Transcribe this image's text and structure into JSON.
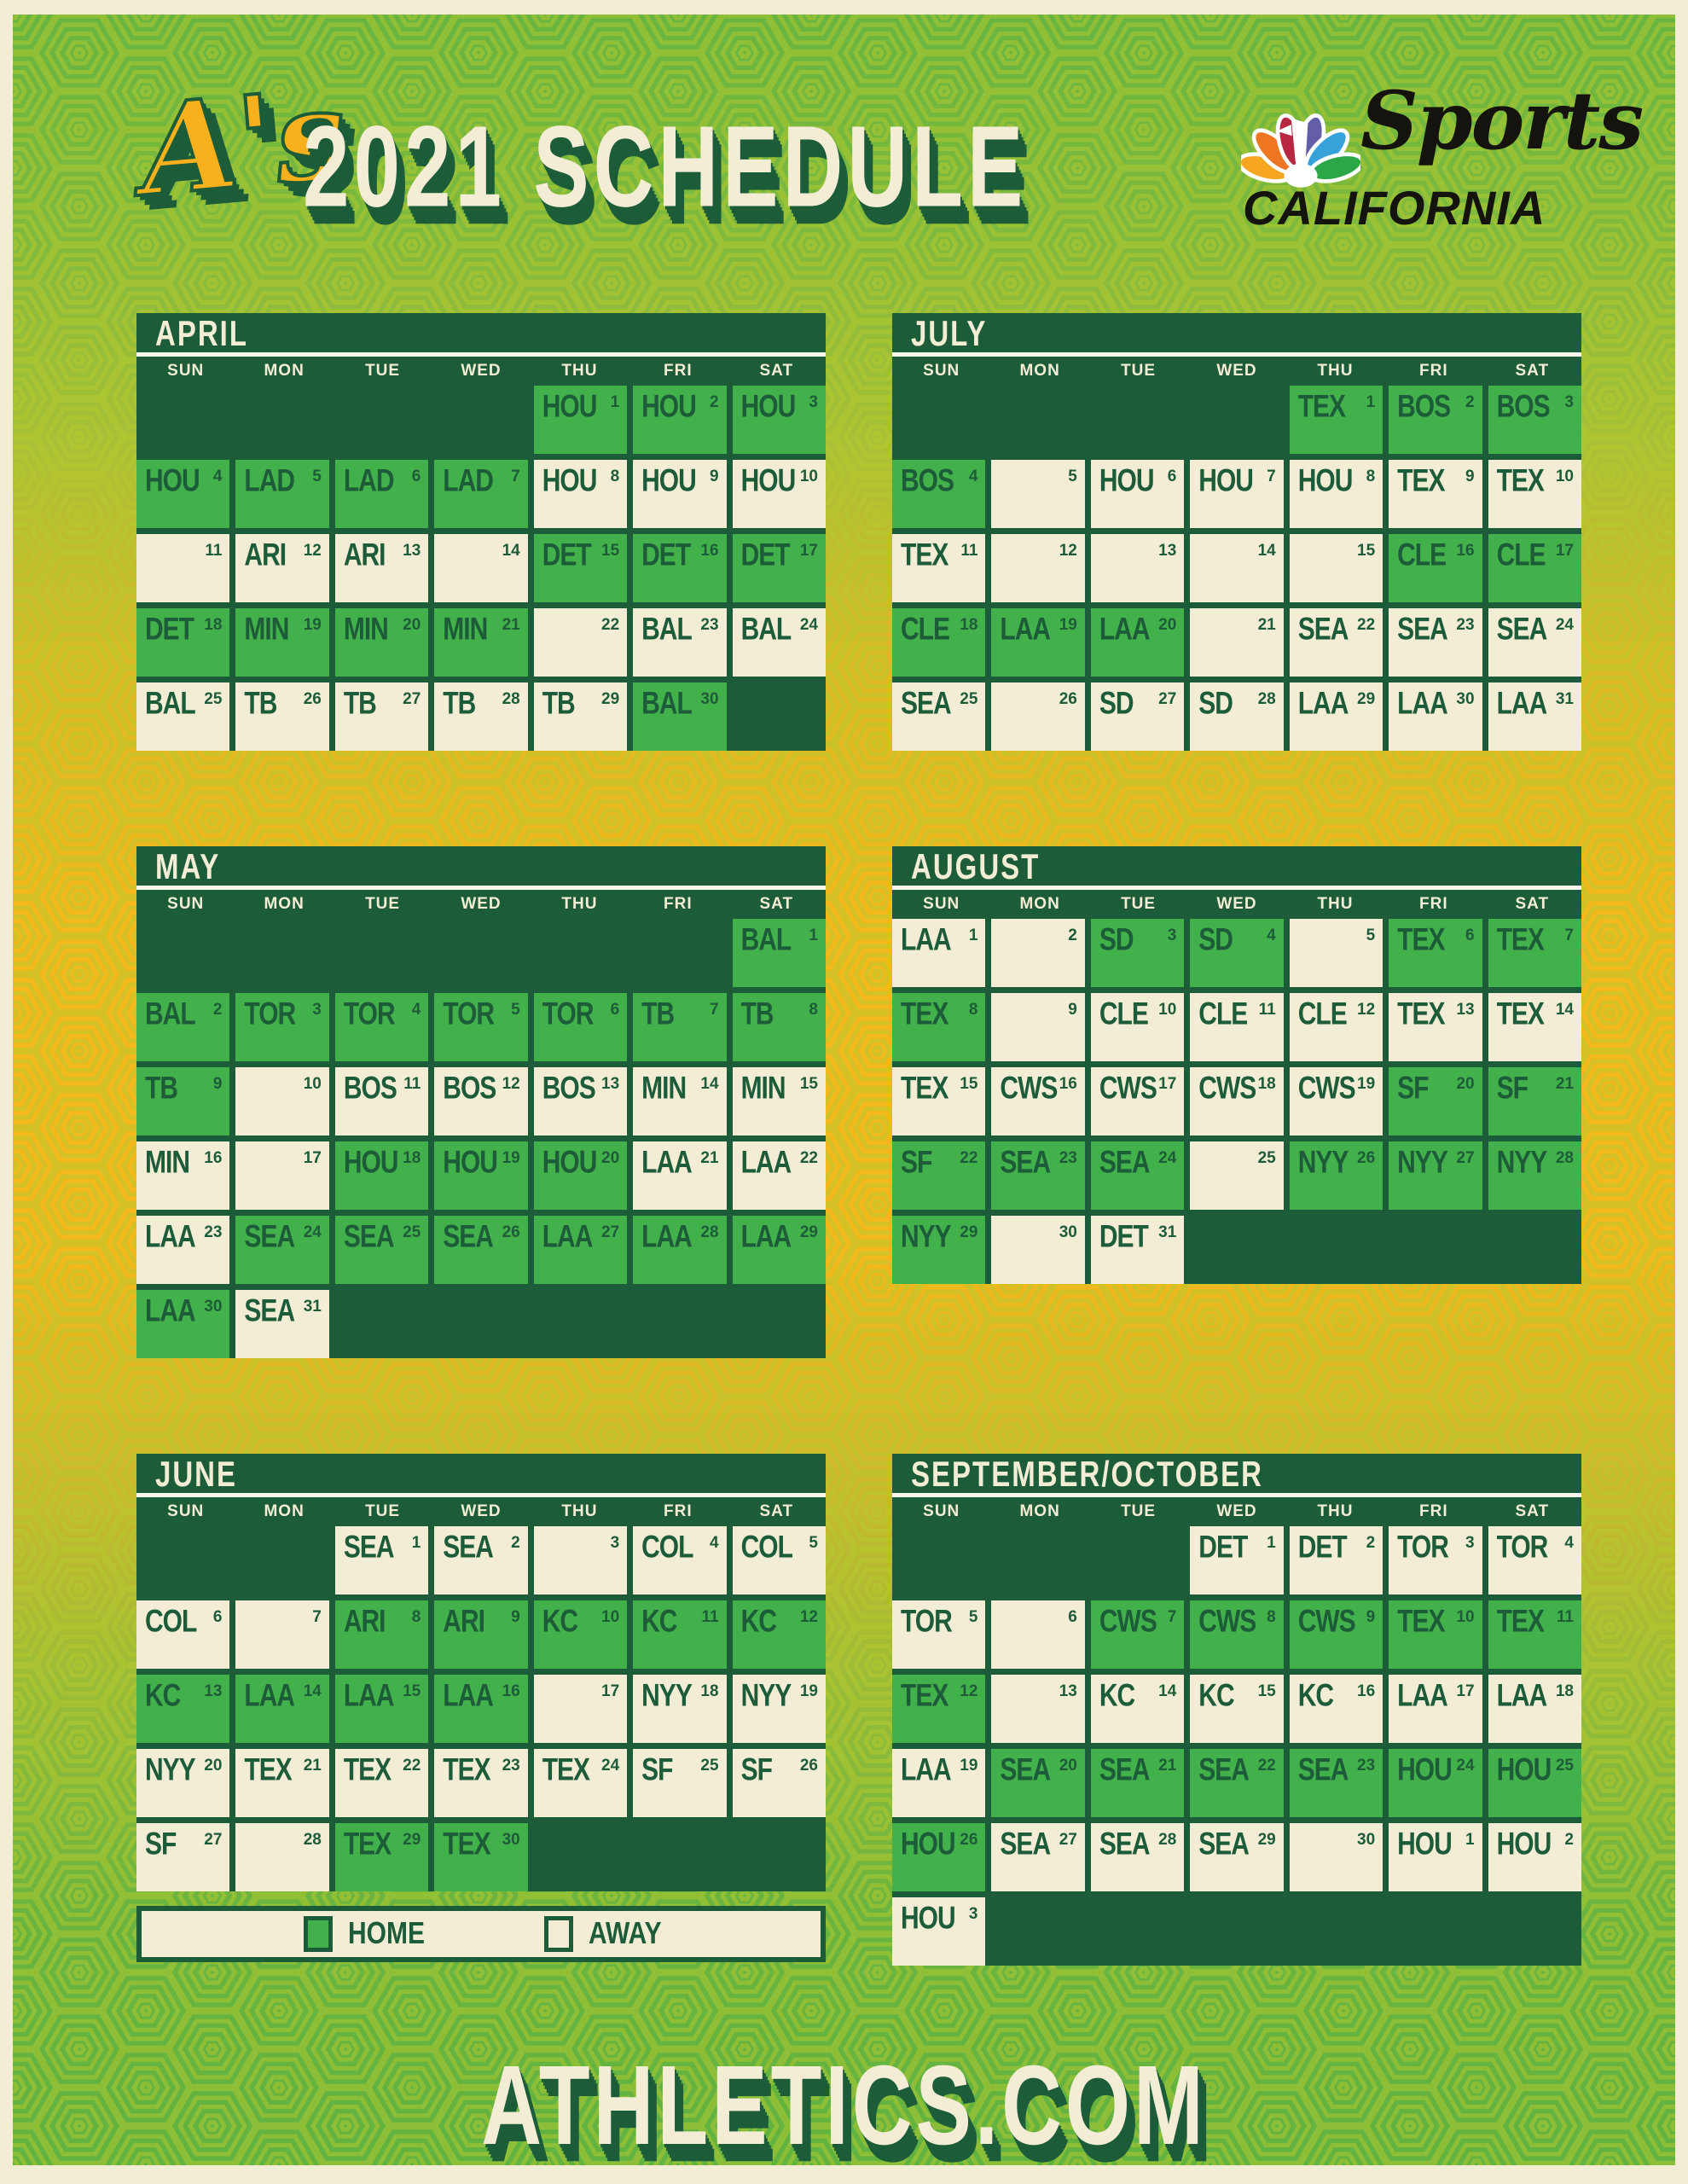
{
  "poster": {
    "team_logo": "A's",
    "title": "2021 SCHEDULE",
    "network": {
      "script": "Sports",
      "region": "CALIFORNIA"
    },
    "footer_url": "ATHLETICS.COM",
    "legend": {
      "home": "HOME",
      "away": "AWAY"
    },
    "day_headers": [
      "SUN",
      "MON",
      "TUE",
      "WED",
      "THU",
      "FRI",
      "SAT"
    ],
    "colors": {
      "dark": "#1d5c38",
      "home": "#42b14b",
      "away": "#f3edd6",
      "gold": "#f2b81c",
      "leaf": "#64b43f",
      "hexline": "#b5ca2e",
      "logogold": "#f8b01c",
      "ink": "#15130d",
      "peacock_yellow": "#f6a620",
      "peacock_orange": "#ee7623",
      "peacock_red": "#b72742",
      "peacock_purple": "#645ea8",
      "peacock_blue": "#37a2d9",
      "peacock_green": "#2ba747"
    },
    "months": [
      {
        "name": "APRIL",
        "leading": 4,
        "rows": 5,
        "games": [
          {
            "day": "1",
            "opp": "HOU",
            "type": "home"
          },
          {
            "day": "2",
            "opp": "HOU",
            "type": "home"
          },
          {
            "day": "3",
            "opp": "HOU",
            "type": "home"
          },
          {
            "day": "4",
            "opp": "HOU",
            "type": "home"
          },
          {
            "day": "5",
            "opp": "LAD",
            "type": "home"
          },
          {
            "day": "6",
            "opp": "LAD",
            "type": "home"
          },
          {
            "day": "7",
            "opp": "LAD",
            "type": "home"
          },
          {
            "day": "8",
            "opp": "HOU",
            "type": "away"
          },
          {
            "day": "9",
            "opp": "HOU",
            "type": "away"
          },
          {
            "day": "10",
            "opp": "HOU",
            "type": "away"
          },
          {
            "day": "11",
            "type": "off"
          },
          {
            "day": "12",
            "opp": "ARI",
            "type": "away"
          },
          {
            "day": "13",
            "opp": "ARI",
            "type": "away"
          },
          {
            "day": "14",
            "type": "off"
          },
          {
            "day": "15",
            "opp": "DET",
            "type": "home"
          },
          {
            "day": "16",
            "opp": "DET",
            "type": "home"
          },
          {
            "day": "17",
            "opp": "DET",
            "type": "home"
          },
          {
            "day": "18",
            "opp": "DET",
            "type": "home"
          },
          {
            "day": "19",
            "opp": "MIN",
            "type": "home"
          },
          {
            "day": "20",
            "opp": "MIN",
            "type": "home"
          },
          {
            "day": "21",
            "opp": "MIN",
            "type": "home"
          },
          {
            "day": "22",
            "type": "off"
          },
          {
            "day": "23",
            "opp": "BAL",
            "type": "away"
          },
          {
            "day": "24",
            "opp": "BAL",
            "type": "away"
          },
          {
            "day": "25",
            "opp": "BAL",
            "type": "away"
          },
          {
            "day": "26",
            "opp": "TB",
            "type": "away"
          },
          {
            "day": "27",
            "opp": "TB",
            "type": "away"
          },
          {
            "day": "28",
            "opp": "TB",
            "type": "away"
          },
          {
            "day": "29",
            "opp": "TB",
            "type": "away"
          },
          {
            "day": "30",
            "opp": "BAL",
            "type": "home"
          }
        ]
      },
      {
        "name": "JULY",
        "leading": 4,
        "rows": 5,
        "games": [
          {
            "day": "1",
            "opp": "TEX",
            "type": "home"
          },
          {
            "day": "2",
            "opp": "BOS",
            "type": "home"
          },
          {
            "day": "3",
            "opp": "BOS",
            "type": "home"
          },
          {
            "day": "4",
            "opp": "BOS",
            "type": "home"
          },
          {
            "day": "5",
            "type": "off"
          },
          {
            "day": "6",
            "opp": "HOU",
            "type": "away"
          },
          {
            "day": "7",
            "opp": "HOU",
            "type": "away"
          },
          {
            "day": "8",
            "opp": "HOU",
            "type": "away"
          },
          {
            "day": "9",
            "opp": "TEX",
            "type": "away"
          },
          {
            "day": "10",
            "opp": "TEX",
            "type": "away"
          },
          {
            "day": "11",
            "opp": "TEX",
            "type": "away"
          },
          {
            "day": "12",
            "type": "off"
          },
          {
            "day": "13",
            "type": "off"
          },
          {
            "day": "14",
            "type": "off"
          },
          {
            "day": "15",
            "type": "off"
          },
          {
            "day": "16",
            "opp": "CLE",
            "type": "home"
          },
          {
            "day": "17",
            "opp": "CLE",
            "type": "home"
          },
          {
            "day": "18",
            "opp": "CLE",
            "type": "home"
          },
          {
            "day": "19",
            "opp": "LAA",
            "type": "home"
          },
          {
            "day": "20",
            "opp": "LAA",
            "type": "home"
          },
          {
            "day": "21",
            "type": "off"
          },
          {
            "day": "22",
            "opp": "SEA",
            "type": "away"
          },
          {
            "day": "23",
            "opp": "SEA",
            "type": "away"
          },
          {
            "day": "24",
            "opp": "SEA",
            "type": "away"
          },
          {
            "day": "25",
            "opp": "SEA",
            "type": "away"
          },
          {
            "day": "26",
            "type": "off"
          },
          {
            "day": "27",
            "opp": "SD",
            "type": "away"
          },
          {
            "day": "28",
            "opp": "SD",
            "type": "away"
          },
          {
            "day": "29",
            "opp": "LAA",
            "type": "away"
          },
          {
            "day": "30",
            "opp": "LAA",
            "type": "away"
          },
          {
            "day": "31",
            "opp": "LAA",
            "type": "away"
          }
        ]
      },
      {
        "name": "MAY",
        "leading": 6,
        "rows": 6,
        "games": [
          {
            "day": "1",
            "opp": "BAL",
            "type": "home"
          },
          {
            "day": "2",
            "opp": "BAL",
            "type": "home"
          },
          {
            "day": "3",
            "opp": "TOR",
            "type": "home"
          },
          {
            "day": "4",
            "opp": "TOR",
            "type": "home"
          },
          {
            "day": "5",
            "opp": "TOR",
            "type": "home"
          },
          {
            "day": "6",
            "opp": "TOR",
            "type": "home"
          },
          {
            "day": "7",
            "opp": "TB",
            "type": "home"
          },
          {
            "day": "8",
            "opp": "TB",
            "type": "home"
          },
          {
            "day": "9",
            "opp": "TB",
            "type": "home"
          },
          {
            "day": "10",
            "type": "off"
          },
          {
            "day": "11",
            "opp": "BOS",
            "type": "away"
          },
          {
            "day": "12",
            "opp": "BOS",
            "type": "away"
          },
          {
            "day": "13",
            "opp": "BOS",
            "type": "away"
          },
          {
            "day": "14",
            "opp": "MIN",
            "type": "away"
          },
          {
            "day": "15",
            "opp": "MIN",
            "type": "away"
          },
          {
            "day": "16",
            "opp": "MIN",
            "type": "away"
          },
          {
            "day": "17",
            "type": "off"
          },
          {
            "day": "18",
            "opp": "HOU",
            "type": "home"
          },
          {
            "day": "19",
            "opp": "HOU",
            "type": "home"
          },
          {
            "day": "20",
            "opp": "HOU",
            "type": "home"
          },
          {
            "day": "21",
            "opp": "LAA",
            "type": "away"
          },
          {
            "day": "22",
            "opp": "LAA",
            "type": "away"
          },
          {
            "day": "23",
            "opp": "LAA",
            "type": "away"
          },
          {
            "day": "24",
            "opp": "SEA",
            "type": "home"
          },
          {
            "day": "25",
            "opp": "SEA",
            "type": "home"
          },
          {
            "day": "26",
            "opp": "SEA",
            "type": "home"
          },
          {
            "day": "27",
            "opp": "LAA",
            "type": "home"
          },
          {
            "day": "28",
            "opp": "LAA",
            "type": "home"
          },
          {
            "day": "29",
            "opp": "LAA",
            "type": "home"
          },
          {
            "day": "30",
            "opp": "LAA",
            "type": "home"
          },
          {
            "day": "31",
            "opp": "SEA",
            "type": "away"
          }
        ]
      },
      {
        "name": "AUGUST",
        "leading": 0,
        "rows": 5,
        "games": [
          {
            "day": "1",
            "opp": "LAA",
            "type": "away"
          },
          {
            "day": "2",
            "type": "off"
          },
          {
            "day": "3",
            "opp": "SD",
            "type": "home"
          },
          {
            "day": "4",
            "opp": "SD",
            "type": "home"
          },
          {
            "day": "5",
            "type": "off"
          },
          {
            "day": "6",
            "opp": "TEX",
            "type": "home"
          },
          {
            "day": "7",
            "opp": "TEX",
            "type": "home"
          },
          {
            "day": "8",
            "opp": "TEX",
            "type": "home"
          },
          {
            "day": "9",
            "type": "off"
          },
          {
            "day": "10",
            "opp": "CLE",
            "type": "away"
          },
          {
            "day": "11",
            "opp": "CLE",
            "type": "away"
          },
          {
            "day": "12",
            "opp": "CLE",
            "type": "away"
          },
          {
            "day": "13",
            "opp": "TEX",
            "type": "away"
          },
          {
            "day": "14",
            "opp": "TEX",
            "type": "away"
          },
          {
            "day": "15",
            "opp": "TEX",
            "type": "away"
          },
          {
            "day": "16",
            "opp": "CWS",
            "type": "away"
          },
          {
            "day": "17",
            "opp": "CWS",
            "type": "away"
          },
          {
            "day": "18",
            "opp": "CWS",
            "type": "away"
          },
          {
            "day": "19",
            "opp": "CWS",
            "type": "away"
          },
          {
            "day": "20",
            "opp": "SF",
            "type": "home"
          },
          {
            "day": "21",
            "opp": "SF",
            "type": "home"
          },
          {
            "day": "22",
            "opp": "SF",
            "type": "home"
          },
          {
            "day": "23",
            "opp": "SEA",
            "type": "home"
          },
          {
            "day": "24",
            "opp": "SEA",
            "type": "home"
          },
          {
            "day": "25",
            "type": "off"
          },
          {
            "day": "26",
            "opp": "NYY",
            "type": "home"
          },
          {
            "day": "27",
            "opp": "NYY",
            "type": "home"
          },
          {
            "day": "28",
            "opp": "NYY",
            "type": "home"
          },
          {
            "day": "29",
            "opp": "NYY",
            "type": "home"
          },
          {
            "day": "30",
            "type": "off"
          },
          {
            "day": "31",
            "opp": "DET",
            "type": "away"
          }
        ]
      },
      {
        "name": "JUNE",
        "leading": 2,
        "rows": 5,
        "games": [
          {
            "day": "1",
            "opp": "SEA",
            "type": "away"
          },
          {
            "day": "2",
            "opp": "SEA",
            "type": "away"
          },
          {
            "day": "3",
            "type": "off"
          },
          {
            "day": "4",
            "opp": "COL",
            "type": "away"
          },
          {
            "day": "5",
            "opp": "COL",
            "type": "away"
          },
          {
            "day": "6",
            "opp": "COL",
            "type": "away"
          },
          {
            "day": "7",
            "type": "off"
          },
          {
            "day": "8",
            "opp": "ARI",
            "type": "home"
          },
          {
            "day": "9",
            "opp": "ARI",
            "type": "home"
          },
          {
            "day": "10",
            "opp": "KC",
            "type": "home"
          },
          {
            "day": "11",
            "opp": "KC",
            "type": "home"
          },
          {
            "day": "12",
            "opp": "KC",
            "type": "home"
          },
          {
            "day": "13",
            "opp": "KC",
            "type": "home"
          },
          {
            "day": "14",
            "opp": "LAA",
            "type": "home"
          },
          {
            "day": "15",
            "opp": "LAA",
            "type": "home"
          },
          {
            "day": "16",
            "opp": "LAA",
            "type": "home"
          },
          {
            "day": "17",
            "type": "off"
          },
          {
            "day": "18",
            "opp": "NYY",
            "type": "away"
          },
          {
            "day": "19",
            "opp": "NYY",
            "type": "away"
          },
          {
            "day": "20",
            "opp": "NYY",
            "type": "away"
          },
          {
            "day": "21",
            "opp": "TEX",
            "type": "away"
          },
          {
            "day": "22",
            "opp": "TEX",
            "type": "away"
          },
          {
            "day": "23",
            "opp": "TEX",
            "type": "away"
          },
          {
            "day": "24",
            "opp": "TEX",
            "type": "away"
          },
          {
            "day": "25",
            "opp": "SF",
            "type": "away"
          },
          {
            "day": "26",
            "opp": "SF",
            "type": "away"
          },
          {
            "day": "27",
            "opp": "SF",
            "type": "away"
          },
          {
            "day": "28",
            "type": "off"
          },
          {
            "day": "29",
            "opp": "TEX",
            "type": "home"
          },
          {
            "day": "30",
            "opp": "TEX",
            "type": "home"
          }
        ]
      },
      {
        "name": "SEPTEMBER/OCTOBER",
        "leading": 3,
        "rows": 6,
        "games": [
          {
            "day": "1",
            "opp": "DET",
            "type": "away"
          },
          {
            "day": "2",
            "opp": "DET",
            "type": "away"
          },
          {
            "day": "3",
            "opp": "TOR",
            "type": "away"
          },
          {
            "day": "4",
            "opp": "TOR",
            "type": "away"
          },
          {
            "day": "5",
            "opp": "TOR",
            "type": "away"
          },
          {
            "day": "6",
            "type": "off"
          },
          {
            "day": "7",
            "opp": "CWS",
            "type": "home"
          },
          {
            "day": "8",
            "opp": "CWS",
            "type": "home"
          },
          {
            "day": "9",
            "opp": "CWS",
            "type": "home"
          },
          {
            "day": "10",
            "opp": "TEX",
            "type": "home"
          },
          {
            "day": "11",
            "opp": "TEX",
            "type": "home"
          },
          {
            "day": "12",
            "opp": "TEX",
            "type": "home"
          },
          {
            "day": "13",
            "type": "off"
          },
          {
            "day": "14",
            "opp": "KC",
            "type": "away"
          },
          {
            "day": "15",
            "opp": "KC",
            "type": "away"
          },
          {
            "day": "16",
            "opp": "KC",
            "type": "away"
          },
          {
            "day": "17",
            "opp": "LAA",
            "type": "away"
          },
          {
            "day": "18",
            "opp": "LAA",
            "type": "away"
          },
          {
            "day": "19",
            "opp": "LAA",
            "type": "away"
          },
          {
            "day": "20",
            "opp": "SEA",
            "type": "home"
          },
          {
            "day": "21",
            "opp": "SEA",
            "type": "home"
          },
          {
            "day": "22",
            "opp": "SEA",
            "type": "home"
          },
          {
            "day": "23",
            "opp": "SEA",
            "type": "home"
          },
          {
            "day": "24",
            "opp": "HOU",
            "type": "home"
          },
          {
            "day": "25",
            "opp": "HOU",
            "type": "home"
          },
          {
            "day": "26",
            "opp": "HOU",
            "type": "home"
          },
          {
            "day": "27",
            "opp": "SEA",
            "type": "away"
          },
          {
            "day": "28",
            "opp": "SEA",
            "type": "away"
          },
          {
            "day": "29",
            "opp": "SEA",
            "type": "away"
          },
          {
            "day": "30",
            "type": "off"
          },
          {
            "day": "1",
            "opp": "HOU",
            "type": "away"
          },
          {
            "day": "2",
            "opp": "HOU",
            "type": "away"
          },
          {
            "day": "3",
            "opp": "HOU",
            "type": "away"
          }
        ]
      }
    ]
  }
}
